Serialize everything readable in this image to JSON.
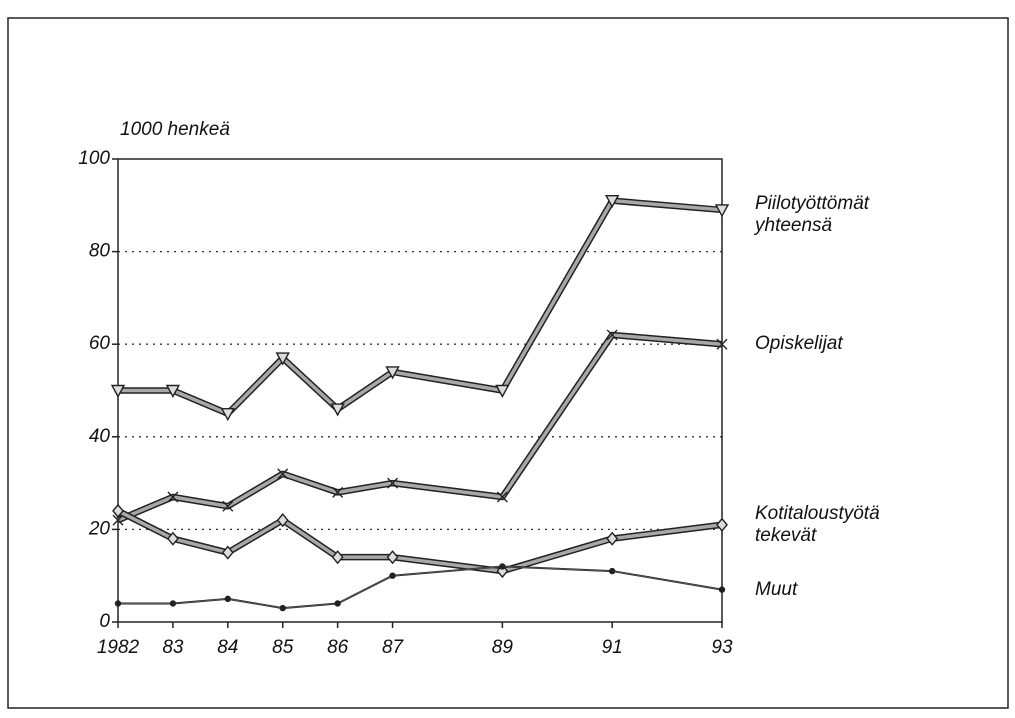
{
  "chart_data": {
    "type": "line",
    "y_axis_label": "1000 henkeä",
    "x": [
      1982,
      1983,
      1984,
      1985,
      1986,
      1987,
      1989,
      1991,
      1993
    ],
    "series": [
      {
        "name": "Piilotyöttömät yhteensä",
        "color": "#a8a8a8",
        "marker": "triangle",
        "values": [
          50,
          50,
          45,
          57,
          46,
          54,
          50,
          91,
          89
        ]
      },
      {
        "name": "Opiskelijat",
        "color": "#a8a8a8",
        "marker": "cross",
        "values": [
          22,
          27,
          25,
          32,
          28,
          30,
          27,
          62,
          60
        ]
      },
      {
        "name": "Kotitaloustyötä tekevät",
        "color": "#a8a8a8",
        "marker": "diamond",
        "values": [
          24,
          18,
          15,
          22,
          14,
          14,
          11,
          18,
          21
        ]
      },
      {
        "name": "Muut",
        "color": "#555555",
        "marker": "dot",
        "values": [
          4,
          4,
          5,
          3,
          4,
          10,
          12,
          11,
          7
        ]
      }
    ],
    "xlim": [
      1982,
      1993
    ],
    "xticks": [
      1982,
      {
        "value": 1983,
        "label": "83"
      },
      {
        "value": 1984,
        "label": "84"
      },
      {
        "value": 1985,
        "label": "85"
      },
      {
        "value": 1986,
        "label": "86"
      },
      {
        "value": 1987,
        "label": "87"
      },
      {
        "value": 1989,
        "label": "89"
      },
      {
        "value": 1991,
        "label": "91"
      },
      {
        "value": 1993,
        "label": "93"
      }
    ],
    "ylim": [
      0,
      100
    ],
    "yticks": [
      0,
      20,
      40,
      60,
      80,
      100
    ],
    "grid": true
  }
}
